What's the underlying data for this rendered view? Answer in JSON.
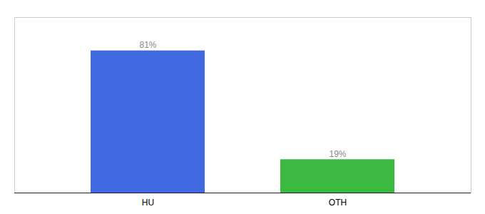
{
  "chart_data": {
    "type": "bar",
    "categories": [
      "HU",
      "OTH"
    ],
    "values": [
      81,
      19
    ],
    "value_labels": [
      "81%",
      "19%"
    ],
    "data_labels": true,
    "colors": [
      "#4169E1",
      "#3CB940"
    ],
    "ylim": [
      0,
      100
    ],
    "grid": false,
    "tick_labels": "x"
  }
}
